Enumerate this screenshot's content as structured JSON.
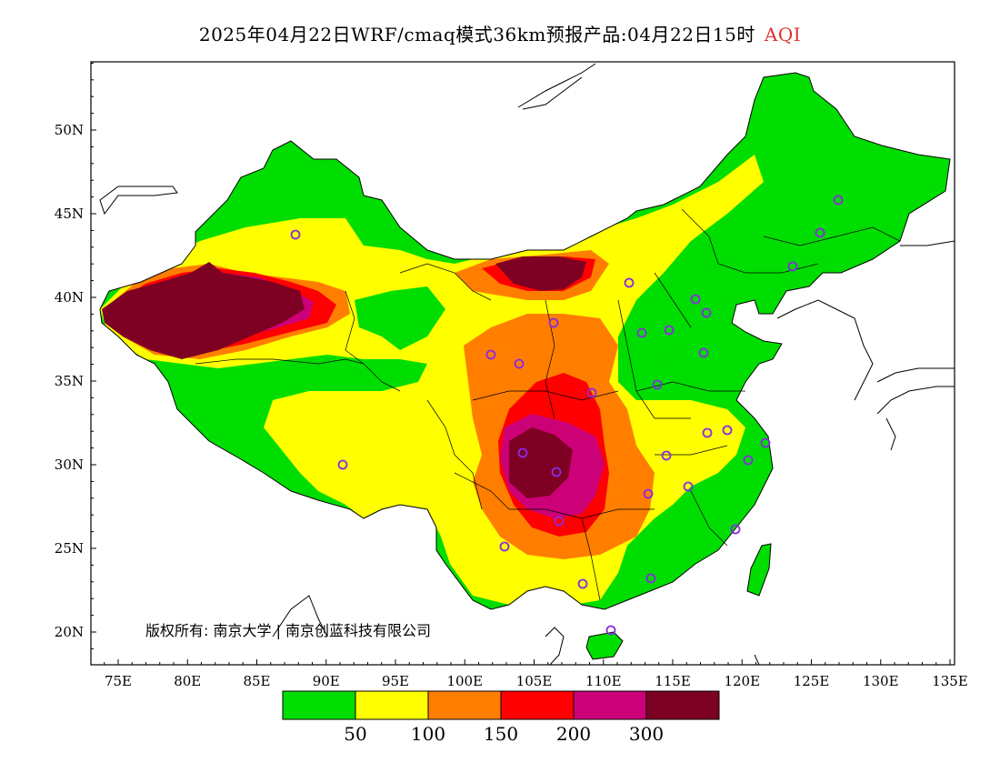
{
  "title": {
    "main": "2025年04月22日WRF/cmaq模式36km预报产品:04月22日15时",
    "variable": "AQI",
    "variable_color": "#e03030"
  },
  "axes": {
    "x_ticks": [
      "75E",
      "80E",
      "85E",
      "90E",
      "95E",
      "100E",
      "105E",
      "110E",
      "115E",
      "120E",
      "125E",
      "130E",
      "135E"
    ],
    "y_ticks": [
      "20N",
      "25N",
      "30N",
      "35N",
      "40N",
      "45N",
      "50N"
    ],
    "lon_range": [
      73,
      135
    ],
    "lat_range": [
      18,
      54
    ]
  },
  "copyright": "版权所有: 南京大学 | 南京创蓝科技有限公司",
  "legend": {
    "colors": [
      "#00dd00",
      "#ffff00",
      "#ff7e00",
      "#ff0000",
      "#cc0077",
      "#7e0023"
    ],
    "labels": [
      "50",
      "100",
      "150",
      "200",
      "300"
    ]
  },
  "stations_note": "purple circle markers = monitoring cities",
  "colors": {
    "good": "#00dd00",
    "moderate": "#ffff00",
    "usg": "#ff7e00",
    "unhealthy": "#ff0000",
    "very_unhealthy": "#cc0077",
    "hazardous": "#7e0023",
    "station": "#8a2be2"
  }
}
